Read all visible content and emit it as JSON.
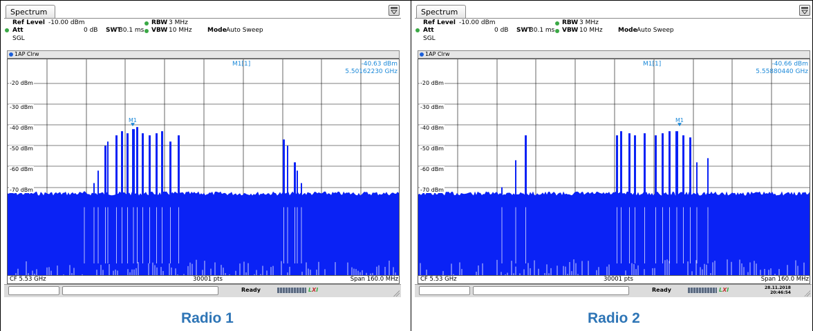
{
  "panels": [
    {
      "tab_title": "Spectrum",
      "ref_level_label": "Ref Level",
      "ref_level_value": "-10.00 dBm",
      "att_label": "Att",
      "att_value": "0 dB",
      "swt_label": "SWT",
      "swt_value": "30.1 ms",
      "rbw_label": "RBW",
      "rbw_value": "3 MHz",
      "vbw_label": "VBW",
      "vbw_value": "10 MHz",
      "mode_label": "Mode",
      "mode_value": "Auto Sweep",
      "sgl_label": "SGL",
      "trace_label": "1AP Clrw",
      "marker_name": "M1[1]",
      "marker_level": "-40.63 dBm",
      "marker_freq": "5.50162230 GHz",
      "marker_tag": "M1",
      "y_labels": [
        "-20 dBm",
        "-30 dBm",
        "-40 dBm",
        "-50 dBm",
        "-60 dBm",
        "-70 dBm"
      ],
      "cf": "CF 5.53 GHz",
      "pts": "30001 pts",
      "span": "Span 160.0 MHz",
      "status": "Ready",
      "date": "",
      "time": "",
      "caption": "Radio 1"
    },
    {
      "tab_title": "Spectrum",
      "ref_level_label": "Ref Level",
      "ref_level_value": "-10.00 dBm",
      "att_label": "Att",
      "att_value": "0 dB",
      "swt_label": "SWT",
      "swt_value": "30.1 ms",
      "rbw_label": "RBW",
      "rbw_value": "3 MHz",
      "vbw_label": "VBW",
      "vbw_value": "10 MHz",
      "mode_label": "Mode",
      "mode_value": "Auto Sweep",
      "sgl_label": "SGL",
      "trace_label": "1AP Clrw",
      "marker_name": "M1[1]",
      "marker_level": "-40.66 dBm",
      "marker_freq": "5.55880440 GHz",
      "marker_tag": "M1",
      "y_labels": [
        "-20 dBm",
        "-30 dBm",
        "-40 dBm",
        "-50 dBm",
        "-60 dBm",
        "-70 dBm"
      ],
      "cf": "CF 5.53 GHz",
      "pts": "30001 pts",
      "span": "Span 160.0 MHz",
      "status": "Ready",
      "date": "28.11.2018",
      "time": "20:46:54",
      "caption": "Radio 2"
    }
  ],
  "colors": {
    "trace": "#0a22f5",
    "marker": "#1a88d8",
    "caption": "#2e75b6",
    "grid": "#000000"
  }
}
